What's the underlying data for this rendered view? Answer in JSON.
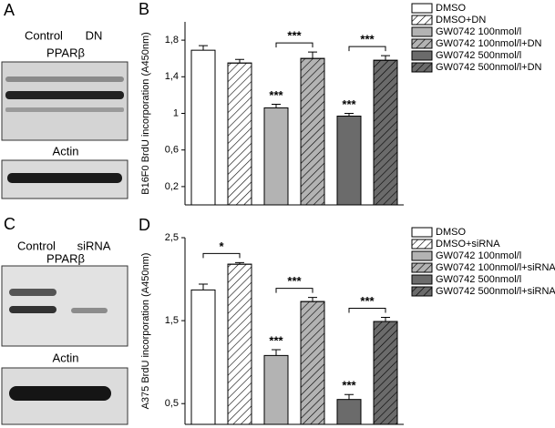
{
  "blots": [
    {
      "letter": "A",
      "lanes": [
        "Control",
        "DN"
      ],
      "target": "PPARβ",
      "loading": "Actin"
    },
    {
      "letter": "C",
      "lanes": [
        "Control",
        "siRNA"
      ],
      "target": "PPARβ",
      "loading": "Actin"
    }
  ],
  "chart_data": [
    {
      "type": "bar",
      "panel_label": "B",
      "y_label": "B16F0 BrdU incorporation (A450nm)",
      "categories": [
        "DMSO",
        "DMSO+DN",
        "GW0742 100nmol/l",
        "GW0742 100nmol/l+DN",
        "GW0742 500nmol/l",
        "GW0742 500nmol/l+DN"
      ],
      "values": [
        1.69,
        1.55,
        1.06,
        1.6,
        0.97,
        1.58
      ],
      "errors": [
        0.05,
        0.04,
        0.04,
        0.07,
        0.03,
        0.05
      ],
      "colors": [
        "#ffffff",
        "#ffffff",
        "#b3b3b3",
        "#b3b3b3",
        "#6b6b6b",
        "#6b6b6b"
      ],
      "hatched": [
        false,
        true,
        false,
        true,
        false,
        true
      ],
      "significance": [
        null,
        null,
        "***",
        null,
        "***",
        null
      ],
      "comparison_significance": [
        null,
        null,
        null,
        "***",
        null,
        "***"
      ],
      "ylim": [
        0,
        2
      ],
      "yticks": [
        {
          "value": 0.2,
          "label": "0,2"
        },
        {
          "value": 0.6,
          "label": "0,6"
        },
        1,
        {
          "value": 1.4,
          "label": "1,4"
        },
        {
          "value": 1.8,
          "label": "1,8"
        }
      ]
    },
    {
      "type": "bar",
      "panel_label": "D",
      "y_label": "A375 BrdU incorporation (A450nm)",
      "categories": [
        "DMSO",
        "DMSO+siRNA",
        "GW0742 100nmol/l",
        "GW0742 100nmol/l+siRNA",
        "GW0742 500nmol/l",
        "GW0742 500nmol/l+siRNA"
      ],
      "values": [
        1.87,
        2.18,
        1.08,
        1.73,
        0.55,
        1.49
      ],
      "errors": [
        0.07,
        0.02,
        0.07,
        0.05,
        0.06,
        0.05
      ],
      "colors": [
        "#ffffff",
        "#ffffff",
        "#b3b3b3",
        "#b3b3b3",
        "#6b6b6b",
        "#6b6b6b"
      ],
      "hatched": [
        false,
        true,
        false,
        true,
        false,
        true
      ],
      "significance": [
        null,
        null,
        "***",
        null,
        "***",
        null
      ],
      "comparison_significance": [
        null,
        "*",
        null,
        "***",
        null,
        "***"
      ],
      "ylim": [
        0.25,
        2.5
      ],
      "yticks": [
        {
          "value": 0.5,
          "label": "0,5"
        },
        {
          "value": 1.5,
          "label": "1,5"
        },
        {
          "value": 2.5,
          "label": "2,5"
        }
      ]
    }
  ]
}
